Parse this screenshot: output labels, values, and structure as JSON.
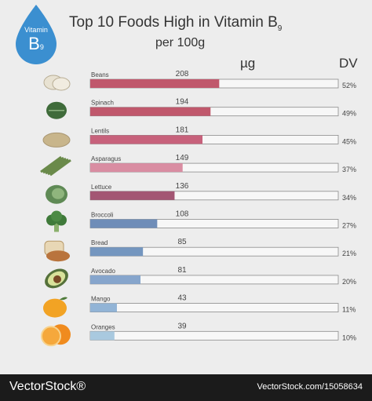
{
  "header": {
    "title": "Top 10 Foods High in Vitamin B",
    "title_sub": "9",
    "subtitle": "per 100g",
    "col_value": "µg",
    "col_dv": "DV",
    "badge_top": "Vitamin",
    "badge_letter": "B",
    "badge_sub": "9"
  },
  "chart_data": {
    "type": "bar",
    "orientation": "horizontal",
    "categories": [
      "Beans",
      "Spinach",
      "Lentils",
      "Asparagus",
      "Lettuce",
      "Broccoli",
      "Bread",
      "Avocado",
      "Mango",
      "Oranges"
    ],
    "values": [
      208,
      194,
      181,
      149,
      136,
      108,
      85,
      81,
      43,
      39
    ],
    "dv": [
      "52%",
      "49%",
      "45%",
      "37%",
      "34%",
      "27%",
      "21%",
      "20%",
      "11%",
      "10%"
    ],
    "xlim": [
      0,
      400
    ],
    "colors": [
      "#c0586c",
      "#c0586c",
      "#c7617b",
      "#d98da2",
      "#a35673",
      "#6f8db8",
      "#7496bf",
      "#86a5cc",
      "#92b4d6",
      "#a9c9df"
    ],
    "icons": [
      "beans-icon",
      "spinach-icon",
      "lentils-icon",
      "asparagus-icon",
      "lettuce-icon",
      "broccoli-icon",
      "bread-icon",
      "avocado-icon",
      "mango-icon",
      "orange-icon"
    ]
  },
  "footer": {
    "left": "VectorStock®",
    "right": "VectorStock.com/15058634"
  }
}
